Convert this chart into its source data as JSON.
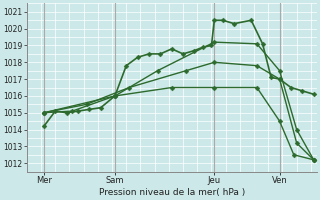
{
  "background_color": "#cce8e8",
  "grid_color": "#ffffff",
  "line_color": "#2d6a2d",
  "title": "Pression niveau de la mer( hPa )",
  "ylim": [
    1011.5,
    1021.5
  ],
  "yticks": [
    1012,
    1013,
    1014,
    1015,
    1016,
    1017,
    1018,
    1019,
    1020,
    1021
  ],
  "xlim": [
    -0.1,
    10.1
  ],
  "day_labels": [
    "Mer",
    "Sam",
    "Jeu",
    "Ven"
  ],
  "day_positions": [
    0.5,
    3.0,
    6.5,
    8.8
  ],
  "vline_positions": [
    0.5,
    3.0,
    6.5,
    8.8
  ],
  "series1_x": [
    0.5,
    0.9,
    1.3,
    1.7,
    2.1,
    2.5,
    3.0,
    3.4,
    3.8,
    4.2,
    4.6,
    5.0,
    5.4,
    5.8,
    6.1,
    6.4,
    6.5,
    6.8,
    7.2,
    7.8,
    8.2,
    8.5,
    8.8,
    9.2,
    9.6,
    10.0
  ],
  "series1_y": [
    1014.2,
    1015.1,
    1015.0,
    1015.1,
    1015.2,
    1015.3,
    1016.0,
    1017.8,
    1018.3,
    1018.5,
    1018.5,
    1018.8,
    1018.5,
    1018.7,
    1018.9,
    1019.0,
    1020.5,
    1020.5,
    1020.3,
    1020.5,
    1019.1,
    1017.1,
    1017.0,
    1016.5,
    1016.3,
    1016.1
  ],
  "series2_x": [
    0.5,
    1.5,
    3.0,
    4.5,
    6.5,
    8.0,
    8.8,
    9.4,
    10.0
  ],
  "series2_y": [
    1015.0,
    1015.1,
    1016.0,
    1017.5,
    1019.2,
    1019.1,
    1017.5,
    1014.0,
    1012.2
  ],
  "series3_x": [
    0.5,
    2.0,
    3.5,
    5.5,
    6.5,
    8.0,
    8.8,
    9.4,
    10.0
  ],
  "series3_y": [
    1015.0,
    1015.5,
    1016.5,
    1017.5,
    1018.0,
    1017.8,
    1017.0,
    1013.2,
    1012.2
  ],
  "series4_x": [
    0.5,
    3.0,
    5.0,
    6.5,
    8.0,
    8.8,
    9.3,
    10.0
  ],
  "series4_y": [
    1015.0,
    1016.0,
    1016.5,
    1016.5,
    1016.5,
    1014.5,
    1012.5,
    1012.2
  ],
  "marker_size": 2.5,
  "linewidth1": 1.2,
  "linewidth2": 1.0,
  "tick_fontsize": 5.5,
  "label_fontsize": 6.0,
  "xlabel_fontsize": 6.5
}
